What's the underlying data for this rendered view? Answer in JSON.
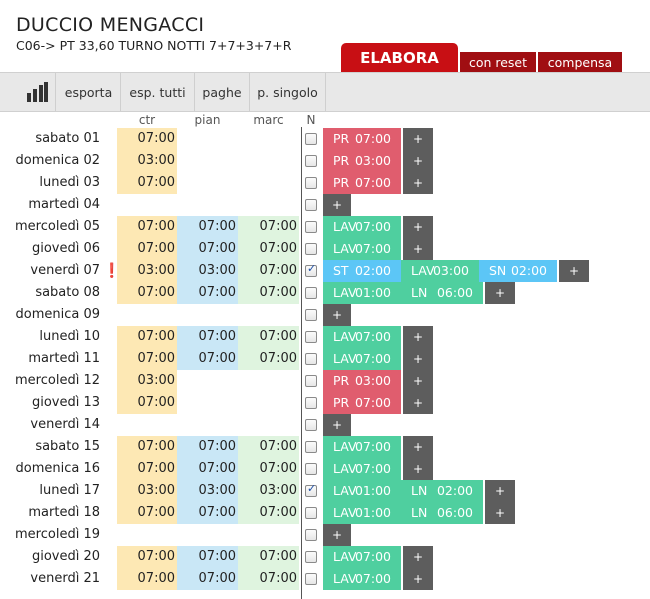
{
  "header": {
    "name": "DUCCIO MENGACCI",
    "subtitle": "C06-> PT 33,60 TURNO NOTTI 7+7+3+7+R",
    "elabora": "ELABORA",
    "con_reset": "con reset",
    "compensa": "compensa"
  },
  "toolbar": {
    "chart_icon": "bar-chart-icon",
    "esporta": "esporta",
    "esp_tutti": "esp. tutti",
    "paghe": "paghe",
    "p_singolo": "p. singolo"
  },
  "columns": {
    "ctr": "ctr",
    "pian": "pian",
    "marc": "marc",
    "n": "N"
  },
  "colors": {
    "ctr": "#fde8b4",
    "pian": "#c9e7f6",
    "marc": "#dff4df",
    "pr": "#e05d6e",
    "lav": "#4fcf9f",
    "st": "#5cc6f6",
    "elabora": "#c80f14"
  },
  "rows": [
    {
      "day": "sabato 01",
      "ctr": "07:00",
      "pian": "",
      "marc": "",
      "n": false,
      "events": [
        {
          "type": "pr",
          "code": "PR",
          "time": "07:00"
        }
      ]
    },
    {
      "day": "domenica 02",
      "ctr": "03:00",
      "pian": "",
      "marc": "",
      "n": false,
      "events": [
        {
          "type": "pr",
          "code": "PR",
          "time": "03:00"
        }
      ]
    },
    {
      "day": "lunedì 03",
      "ctr": "07:00",
      "pian": "",
      "marc": "",
      "n": false,
      "events": [
        {
          "type": "pr",
          "code": "PR",
          "time": "07:00"
        }
      ]
    },
    {
      "day": "martedì 04",
      "ctr": "",
      "pian": "",
      "marc": "",
      "n": false,
      "events": []
    },
    {
      "day": "mercoledì 05",
      "ctr": "07:00",
      "pian": "07:00",
      "marc": "07:00",
      "n": false,
      "events": [
        {
          "type": "lav",
          "code": "LAV",
          "time": "07:00"
        }
      ]
    },
    {
      "day": "giovedì 06",
      "ctr": "07:00",
      "pian": "07:00",
      "marc": "07:00",
      "n": false,
      "events": [
        {
          "type": "lav",
          "code": "LAV",
          "time": "07:00"
        }
      ]
    },
    {
      "day": "venerdì 07",
      "alert": "❗",
      "ctr": "03:00",
      "pian": "03:00",
      "marc": "07:00",
      "n": true,
      "events": [
        {
          "type": "st",
          "code": "ST",
          "time": "02:00"
        },
        {
          "type": "lav",
          "code": "LAV",
          "time": "03:00"
        },
        {
          "type": "st",
          "code": "SN",
          "time": "02:00"
        }
      ]
    },
    {
      "day": "sabato 08",
      "ctr": "07:00",
      "pian": "07:00",
      "marc": "07:00",
      "n": false,
      "events": [
        {
          "type": "lav",
          "code": "LAV",
          "time": "01:00"
        },
        {
          "type": "lav",
          "code": "LN",
          "time": "06:00"
        }
      ]
    },
    {
      "day": "domenica 09",
      "ctr": "",
      "pian": "",
      "marc": "",
      "n": false,
      "events": []
    },
    {
      "day": "lunedì 10",
      "ctr": "07:00",
      "pian": "07:00",
      "marc": "07:00",
      "n": false,
      "events": [
        {
          "type": "lav",
          "code": "LAV",
          "time": "07:00"
        }
      ]
    },
    {
      "day": "martedì 11",
      "ctr": "07:00",
      "pian": "07:00",
      "marc": "07:00",
      "n": false,
      "events": [
        {
          "type": "lav",
          "code": "LAV",
          "time": "07:00"
        }
      ]
    },
    {
      "day": "mercoledì 12",
      "ctr": "03:00",
      "pian": "",
      "marc": "",
      "n": false,
      "events": [
        {
          "type": "pr",
          "code": "PR",
          "time": "03:00"
        }
      ]
    },
    {
      "day": "giovedì 13",
      "ctr": "07:00",
      "pian": "",
      "marc": "",
      "n": false,
      "events": [
        {
          "type": "pr",
          "code": "PR",
          "time": "07:00"
        }
      ]
    },
    {
      "day": "venerdì 14",
      "ctr": "",
      "pian": "",
      "marc": "",
      "n": false,
      "events": []
    },
    {
      "day": "sabato 15",
      "ctr": "07:00",
      "pian": "07:00",
      "marc": "07:00",
      "n": false,
      "events": [
        {
          "type": "lav",
          "code": "LAV",
          "time": "07:00"
        }
      ]
    },
    {
      "day": "domenica 16",
      "ctr": "07:00",
      "pian": "07:00",
      "marc": "07:00",
      "n": false,
      "events": [
        {
          "type": "lav",
          "code": "LAV",
          "time": "07:00"
        }
      ]
    },
    {
      "day": "lunedì 17",
      "ctr": "03:00",
      "pian": "03:00",
      "marc": "03:00",
      "n": true,
      "events": [
        {
          "type": "lav",
          "code": "LAV",
          "time": "01:00"
        },
        {
          "type": "lav",
          "code": "LN",
          "time": "02:00"
        }
      ]
    },
    {
      "day": "martedì 18",
      "ctr": "07:00",
      "pian": "07:00",
      "marc": "07:00",
      "n": false,
      "events": [
        {
          "type": "lav",
          "code": "LAV",
          "time": "01:00"
        },
        {
          "type": "lav",
          "code": "LN",
          "time": "06:00"
        }
      ]
    },
    {
      "day": "mercoledì 19",
      "ctr": "",
      "pian": "",
      "marc": "",
      "n": false,
      "events": []
    },
    {
      "day": "giovedì 20",
      "ctr": "07:00",
      "pian": "07:00",
      "marc": "07:00",
      "n": false,
      "events": [
        {
          "type": "lav",
          "code": "LAV",
          "time": "07:00"
        }
      ]
    },
    {
      "day": "venerdì 21",
      "ctr": "07:00",
      "pian": "07:00",
      "marc": "07:00",
      "n": false,
      "events": [
        {
          "type": "lav",
          "code": "LAV",
          "time": "07:00"
        }
      ]
    }
  ]
}
